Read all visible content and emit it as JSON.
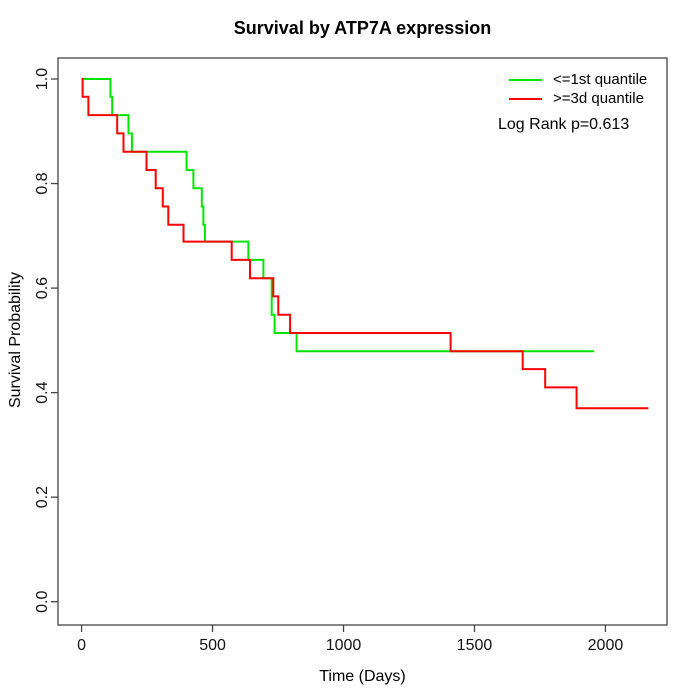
{
  "chart_data": {
    "type": "line",
    "subtype": "kaplan-meier-step",
    "title": "Survival by ATP7A expression",
    "xlabel": "Time (Days)",
    "ylabel": "Survival Probability",
    "annotation": "Log Rank p=0.613",
    "grid": false,
    "legend_position": "top-right-inside",
    "xlim": [
      -90,
      2235
    ],
    "ylim": [
      -0.0446,
      1.0402
    ],
    "x_ticks": [
      0,
      500,
      1000,
      1500,
      2000
    ],
    "x_tick_labels": [
      "0",
      "500",
      "1000",
      "1500",
      "2000"
    ],
    "y_ticks": [
      0.0,
      0.2,
      0.4,
      0.6,
      0.8,
      1.0
    ],
    "y_tick_labels": [
      "0.0",
      "0.2",
      "0.4",
      "0.6",
      "0.8",
      "1.0"
    ],
    "axis_color": "#444444",
    "series": [
      {
        "name": "<=1st quantile",
        "color": "#00e400",
        "start": [
          0,
          1.0
        ],
        "steps": [
          [
            110,
            0.966
          ],
          [
            117,
            0.931
          ],
          [
            179,
            0.896
          ],
          [
            192,
            0.861
          ],
          [
            401,
            0.826
          ],
          [
            427,
            0.791
          ],
          [
            459,
            0.756
          ],
          [
            465,
            0.721
          ],
          [
            471,
            0.689
          ],
          [
            637,
            0.654
          ],
          [
            694,
            0.619
          ],
          [
            726,
            0.549
          ],
          [
            737,
            0.514
          ],
          [
            821,
            0.479
          ]
        ],
        "end_time": 1956
      },
      {
        "name": ">=3d quantile",
        "color": "#ff0000",
        "start": [
          0,
          1.0
        ],
        "steps": [
          [
            4,
            0.966
          ],
          [
            26,
            0.931
          ],
          [
            136,
            0.896
          ],
          [
            160,
            0.861
          ],
          [
            248,
            0.826
          ],
          [
            283,
            0.791
          ],
          [
            310,
            0.756
          ],
          [
            331,
            0.721
          ],
          [
            389,
            0.689
          ],
          [
            573,
            0.654
          ],
          [
            643,
            0.619
          ],
          [
            732,
            0.584
          ],
          [
            751,
            0.549
          ],
          [
            796,
            0.514
          ],
          [
            1409,
            0.479
          ],
          [
            1684,
            0.445
          ],
          [
            1770,
            0.41
          ],
          [
            1890,
            0.37
          ]
        ],
        "end_time": 2164
      }
    ]
  }
}
